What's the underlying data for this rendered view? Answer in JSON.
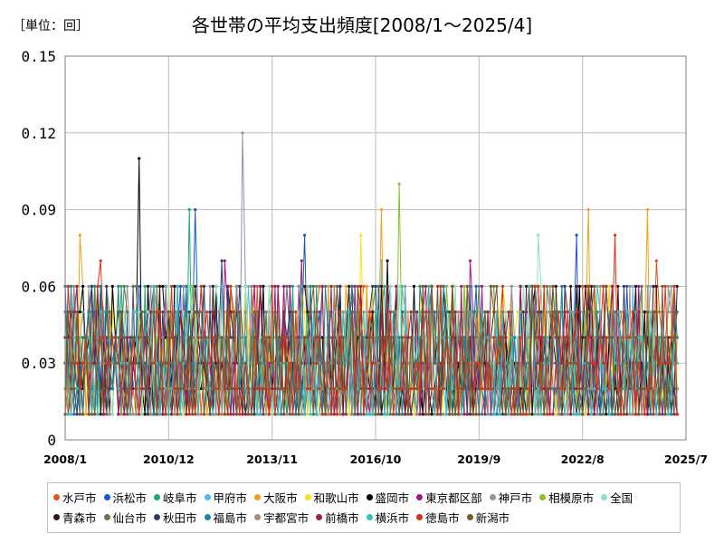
{
  "unit_label": "［単位：回］",
  "chart_data": {
    "type": "line",
    "title": "各世帯の平均支出頻度[2008/1～2025/4]",
    "xlabel": "",
    "ylabel": "",
    "x_ticks": [
      "2008/1",
      "2010/12",
      "2013/11",
      "2016/10",
      "2019/9",
      "2022/8",
      "2025/7"
    ],
    "y_ticks": [
      "0",
      "0.03",
      "0.06",
      "0.09",
      "0.12",
      "0.15"
    ],
    "ylim": [
      0,
      0.15
    ],
    "grid": true,
    "legend_position": "bottom",
    "series": [
      {
        "name": "水戸市",
        "color": "#e8541c",
        "peaks": [
          [
            "2008-11",
            0.06
          ],
          [
            "2024-09",
            0.07
          ]
        ]
      },
      {
        "name": "浜松市",
        "color": "#1a56c8",
        "peaks": [
          [
            "2011-09",
            0.09
          ],
          [
            "2014-10",
            0.08
          ],
          [
            "2022-06",
            0.08
          ]
        ]
      },
      {
        "name": "岐阜市",
        "color": "#1aa874",
        "peaks": [
          [
            "2011-07",
            0.09
          ]
        ]
      },
      {
        "name": "甲府市",
        "color": "#5ab8e6",
        "peaks": [
          [
            "2016-12",
            0.07
          ]
        ]
      },
      {
        "name": "大阪市",
        "color": "#f0a01e",
        "peaks": [
          [
            "2008-06",
            0.08
          ],
          [
            "2016-12",
            0.09
          ],
          [
            "2022-10",
            0.09
          ],
          [
            "2024-06",
            0.09
          ]
        ]
      },
      {
        "name": "和歌山市",
        "color": "#f5e21b",
        "peaks": [
          [
            "2016-05",
            0.08
          ]
        ]
      },
      {
        "name": "盛岡市",
        "color": "#000000",
        "peaks": [
          [
            "2010-02",
            0.11
          ],
          [
            "2017-02",
            0.07
          ]
        ]
      },
      {
        "name": "東京都区部",
        "color": "#a0188c",
        "peaks": [
          [
            "2012-07",
            0.07
          ],
          [
            "2019-06",
            0.07
          ]
        ]
      },
      {
        "name": "神戸市",
        "color": "#8c96a8",
        "peaks": [
          [
            "2013-01",
            0.12
          ]
        ]
      },
      {
        "name": "相模原市",
        "color": "#8cbe32",
        "peaks": [
          [
            "2017-06",
            0.1
          ]
        ]
      },
      {
        "name": "全国",
        "color": "#8ce6be",
        "peaks": [
          [
            "2021-05",
            0.08
          ]
        ]
      },
      {
        "name": "青森市",
        "color": "#3c1414",
        "peaks": [
          [
            "2022-09",
            0.06
          ]
        ]
      },
      {
        "name": "仙台市",
        "color": "#647850",
        "peaks": [
          [
            "2013-09",
            0.05
          ]
        ]
      },
      {
        "name": "秋田市",
        "color": "#323c64",
        "peaks": [
          [
            "2012-06",
            0.07
          ]
        ]
      },
      {
        "name": "福島市",
        "color": "#1e82a0",
        "peaks": [
          [
            "2015-05",
            0.06
          ]
        ]
      },
      {
        "name": "宇都宮市",
        "color": "#a08c78",
        "peaks": [
          [
            "2013-04",
            0.06
          ]
        ]
      },
      {
        "name": "前橋市",
        "color": "#a01e50",
        "peaks": [
          [
            "2014-09",
            0.07
          ]
        ]
      },
      {
        "name": "横浜市",
        "color": "#3cbebe",
        "peaks": [
          [
            "2021-03",
            0.06
          ]
        ]
      },
      {
        "name": "徳島市",
        "color": "#dc3214",
        "peaks": [
          [
            "2009-01",
            0.07
          ],
          [
            "2023-07",
            0.08
          ]
        ]
      },
      {
        "name": "新潟市",
        "color": "#7a5a2a",
        "peaks": [
          [
            "2015-09",
            0.06
          ]
        ]
      }
    ]
  }
}
